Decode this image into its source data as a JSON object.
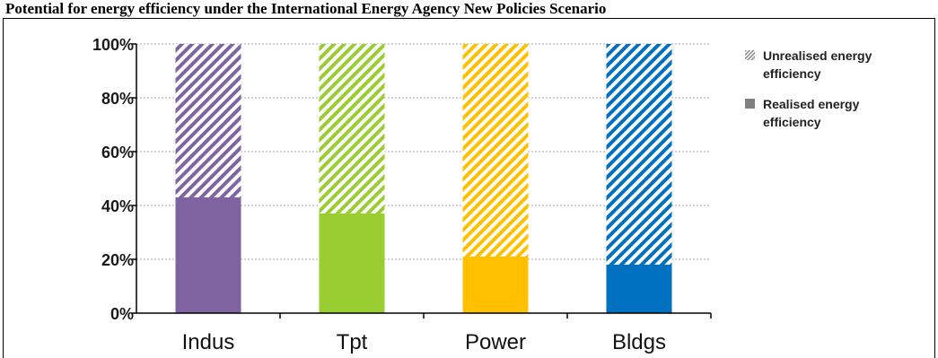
{
  "page_title": "Potential for energy efficiency under the International Energy Agency New Policies Scenario",
  "chart_data": {
    "type": "bar",
    "stacked": true,
    "categories": [
      "Indus",
      "Tpt",
      "Power",
      "Bldgs"
    ],
    "series": [
      {
        "name": "Realised energy efficiency",
        "values": [
          43,
          37,
          21,
          18
        ],
        "style": "solid"
      },
      {
        "name": "Unrealised energy efficiency",
        "values": [
          57,
          63,
          79,
          82
        ],
        "style": "hatched"
      }
    ],
    "category_colors": [
      "#8064a2",
      "#9acd32",
      "#ffc000",
      "#0070c0"
    ],
    "yticks": [
      "0%",
      "20%",
      "40%",
      "60%",
      "80%",
      "100%"
    ],
    "ylim": [
      0,
      100
    ],
    "grid": "dotted horizontal",
    "legend_position": "right",
    "legend_colors": {
      "unrealised": "#888888",
      "realised": "#808080"
    }
  }
}
